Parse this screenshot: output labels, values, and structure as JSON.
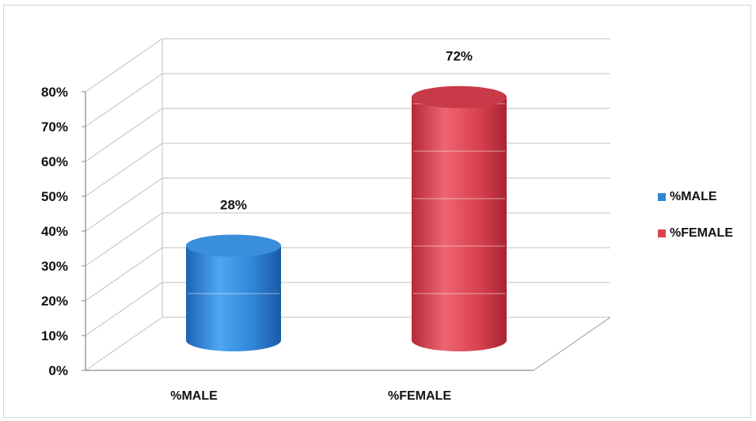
{
  "chart_data": {
    "type": "bar",
    "categories": [
      "%MALE",
      "%FEMALE"
    ],
    "series": [
      {
        "name": "%MALE",
        "values": [
          28,
          null
        ],
        "color": "#2f86d6",
        "data_label": "28%"
      },
      {
        "name": "%FEMALE",
        "values": [
          null,
          72
        ],
        "color": "#d8424f",
        "data_label": "72%"
      }
    ],
    "values": [
      28,
      72
    ],
    "value_unit": "%",
    "ylim": [
      0,
      80
    ],
    "yticks": [
      "0%",
      "10%",
      "20%",
      "30%",
      "40%",
      "50%",
      "60%",
      "70%",
      "80%"
    ],
    "grid": true,
    "style": "3d-cylinder",
    "legend": {
      "placement": "right",
      "entries": [
        "%MALE",
        "%FEMALE"
      ]
    },
    "title": "",
    "xlabel": "",
    "ylabel": ""
  }
}
